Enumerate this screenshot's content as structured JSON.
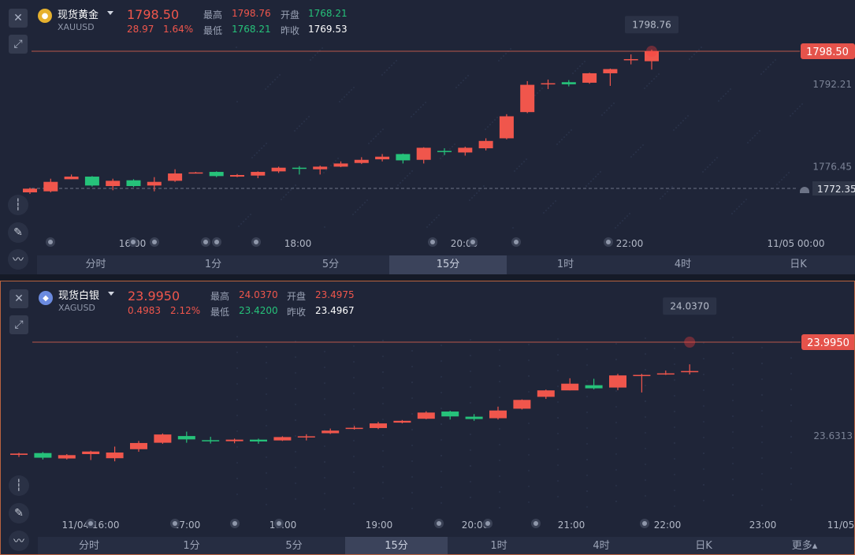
{
  "gold": {
    "name": "现货黄金",
    "code": "XAUUSD",
    "price": "1798.50",
    "change": "28.97",
    "change_pct": "1.64%",
    "high_label": "最高",
    "high": "1798.76",
    "low_label": "最低",
    "low": "1768.21",
    "open_label": "开盘",
    "open": "1768.21",
    "prev_label": "昨收",
    "prev_close": "1769.53",
    "max_label": "1798.76",
    "price_tag": "1798.50",
    "alert_tag": "1772.35",
    "axis_labels": [
      "1792.21",
      "1776.45"
    ],
    "time_labels": [
      "16:00",
      "18:00",
      "20:00",
      "22:00",
      "11/05 00:00"
    ],
    "tabs": [
      "分时",
      "1分",
      "5分",
      "15分",
      "1时",
      "4时",
      "日K"
    ],
    "active_tab": 3
  },
  "silver": {
    "name": "现货白银",
    "code": "XAGUSD",
    "price": "23.9950",
    "change": "0.4983",
    "change_pct": "2.12%",
    "high_label": "最高",
    "high": "24.0370",
    "low_label": "最低",
    "low": "23.4200",
    "open_label": "开盘",
    "open": "23.4975",
    "prev_label": "昨收",
    "prev_close": "23.4967",
    "max_label": "24.0370",
    "price_tag": "23.9950",
    "axis_labels": [
      "23.6313"
    ],
    "time_labels": [
      "11/04 16:00",
      "17:00",
      "18:00",
      "19:00",
      "20:00",
      "21:00",
      "22:00",
      "23:00",
      "11/05"
    ],
    "tabs": [
      "分时",
      "1分",
      "5分",
      "15分",
      "1时",
      "4时",
      "日K"
    ],
    "more_label": "更多▴",
    "active_tab": 3
  },
  "icons": [
    "close-icon",
    "expand-icon",
    "gold-coin-icon",
    "silver-coin-icon",
    "candle-type-icon",
    "pen-icon",
    "indicator-icon",
    "bell-icon"
  ],
  "colors": {
    "up": "#f0564c",
    "down": "#26c27a",
    "background": "#1f2538",
    "price_line": "#c0584a"
  },
  "gold_candles": [
    [
      1771.6,
      1772.3,
      1771.3,
      1772.5
    ],
    [
      1771.8,
      1773.6,
      1771.6,
      1774.2
    ],
    [
      1774.1,
      1774.6,
      1774.1,
      1775.0
    ],
    [
      1774.6,
      1772.9,
      1772.7,
      1774.7
    ],
    [
      1772.8,
      1773.8,
      1772.0,
      1774.2
    ],
    [
      1773.9,
      1772.8,
      1772.6,
      1774.1
    ],
    [
      1772.9,
      1773.6,
      1771.8,
      1774.5
    ],
    [
      1773.8,
      1775.2,
      1773.6,
      1776.0
    ],
    [
      1775.3,
      1775.4,
      1775.2,
      1775.5
    ],
    [
      1775.5,
      1774.7,
      1774.5,
      1775.6
    ],
    [
      1774.6,
      1774.9,
      1774.5,
      1775.1
    ],
    [
      1774.8,
      1775.5,
      1774.3,
      1775.6
    ],
    [
      1775.6,
      1776.3,
      1775.3,
      1776.5
    ],
    [
      1776.3,
      1776.2,
      1775.0,
      1776.6
    ],
    [
      1776.0,
      1776.5,
      1775.0,
      1776.7
    ],
    [
      1776.5,
      1777.1,
      1776.4,
      1777.5
    ],
    [
      1777.2,
      1777.8,
      1777.0,
      1778.3
    ],
    [
      1777.9,
      1778.4,
      1777.5,
      1778.9
    ],
    [
      1778.9,
      1777.7,
      1777.1,
      1779.0
    ],
    [
      1777.8,
      1780.1,
      1777.1,
      1780.2
    ],
    [
      1779.5,
      1779.4,
      1778.7,
      1780.0
    ],
    [
      1779.2,
      1780.1,
      1778.6,
      1780.3
    ],
    [
      1780.0,
      1781.4,
      1779.6,
      1781.9
    ],
    [
      1781.9,
      1786.1,
      1781.7,
      1786.5
    ],
    [
      1786.9,
      1792.1,
      1786.7,
      1792.8
    ],
    [
      1792.4,
      1792.4,
      1791.3,
      1793.1
    ],
    [
      1792.6,
      1792.2,
      1791.8,
      1793.0
    ],
    [
      1792.5,
      1794.3,
      1792.3,
      1794.4
    ],
    [
      1794.3,
      1795.1,
      1791.9,
      1795.2
    ],
    [
      1797.0,
      1797.0,
      1796.0,
      1797.9
    ],
    [
      1796.6,
      1798.5,
      1795.0,
      1798.8
    ]
  ],
  "silver_candles": [
    [
      23.558,
      23.563,
      23.55,
      23.566
    ],
    [
      23.565,
      23.547,
      23.54,
      23.569
    ],
    [
      23.544,
      23.557,
      23.54,
      23.561
    ],
    [
      23.561,
      23.571,
      23.538,
      23.574
    ],
    [
      23.545,
      23.567,
      23.533,
      23.59
    ],
    [
      23.58,
      23.604,
      23.57,
      23.612
    ],
    [
      23.605,
      23.637,
      23.601,
      23.641
    ],
    [
      23.631,
      23.618,
      23.605,
      23.648
    ],
    [
      23.615,
      23.614,
      23.602,
      23.628
    ],
    [
      23.611,
      23.617,
      23.603,
      23.621
    ],
    [
      23.617,
      23.61,
      23.601,
      23.621
    ],
    [
      23.614,
      23.627,
      23.612,
      23.63
    ],
    [
      23.629,
      23.63,
      23.614,
      23.638
    ],
    [
      23.642,
      23.652,
      23.639,
      23.66
    ],
    [
      23.663,
      23.663,
      23.656,
      23.67
    ],
    [
      23.662,
      23.68,
      23.658,
      23.686
    ],
    [
      23.683,
      23.69,
      23.68,
      23.693
    ],
    [
      23.698,
      23.722,
      23.696,
      23.727
    ],
    [
      23.726,
      23.707,
      23.695,
      23.729
    ],
    [
      23.706,
      23.697,
      23.69,
      23.716
    ],
    [
      23.7,
      23.73,
      23.695,
      23.745
    ],
    [
      23.737,
      23.771,
      23.734,
      23.773
    ],
    [
      23.783,
      23.808,
      23.775,
      23.811
    ],
    [
      23.808,
      23.834,
      23.808,
      23.855
    ],
    [
      23.828,
      23.816,
      23.812,
      23.853
    ],
    [
      23.819,
      23.866,
      23.809,
      23.872
    ],
    [
      23.868,
      23.868,
      23.8,
      23.872
    ],
    [
      23.874,
      23.874,
      23.868,
      23.885
    ],
    [
      23.883,
      23.883,
      23.87,
      23.909
    ]
  ]
}
